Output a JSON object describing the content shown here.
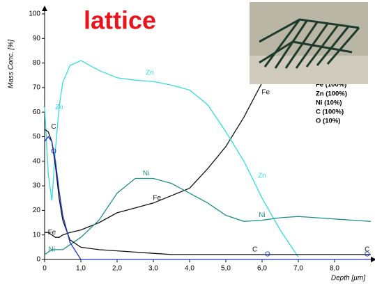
{
  "chart_data": {
    "type": "line",
    "title": "lattice",
    "y_label": "Mass Conc. [%]",
    "x_label": "Depth [µm]",
    "xlim": [
      0,
      9
    ],
    "ylim": [
      0,
      100
    ],
    "xticks": [
      0,
      {
        "value": 1,
        "label": "1,0"
      },
      {
        "value": 2,
        "label": "2,0"
      },
      {
        "value": 3,
        "label": "3,0"
      },
      {
        "value": 4,
        "label": "4,0"
      },
      {
        "value": 5,
        "label": "5,0"
      },
      {
        "value": 6,
        "label": "6,0"
      },
      {
        "value": 7,
        "label": "7,0"
      },
      {
        "value": 8,
        "label": "8,0"
      }
    ],
    "yticks": [
      0,
      10,
      20,
      30,
      40,
      50,
      60,
      70,
      80,
      90,
      100
    ],
    "x": [
      0,
      0.1,
      0.2,
      0.3,
      0.4,
      0.5,
      0.7,
      1.0,
      1.5,
      2.0,
      2.5,
      3.0,
      3.5,
      4.0,
      4.5,
      5.0,
      5.5,
      6.0,
      6.5,
      7.0,
      7.5,
      8.0,
      8.5,
      9.0
    ],
    "series": [
      {
        "name": "Fe (100%)",
        "color": "#111111",
        "values": [
          11,
          11,
          10,
          9,
          9,
          10,
          11,
          12,
          15,
          19,
          21,
          23,
          26,
          29,
          37,
          46,
          58,
          72,
          null,
          null,
          null,
          null,
          null,
          null
        ]
      },
      {
        "name": "Zn (100%)",
        "color": "#33dede",
        "values": [
          62,
          35,
          24,
          45,
          62,
          72,
          79,
          81,
          77,
          74,
          73,
          72.5,
          71,
          69,
          63,
          52,
          40,
          25,
          12,
          1,
          null,
          null,
          null,
          null
        ]
      },
      {
        "name": "Ni (10%)",
        "color": "#1f8f8c",
        "values": [
          2,
          3,
          4,
          4,
          4,
          4,
          6,
          9,
          16,
          27,
          33,
          33,
          31,
          27,
          23,
          18,
          15.5,
          16,
          17,
          17.5,
          17,
          16.5,
          16,
          15.5
        ]
      },
      {
        "name": "C (100%)",
        "color": "#111111",
        "values": [
          53,
          52,
          48,
          38,
          25,
          16,
          8,
          5,
          4,
          3.5,
          3,
          2.5,
          2,
          2,
          2,
          2,
          2,
          2,
          2,
          2,
          2,
          2,
          2,
          2
        ]
      },
      {
        "name": "O (10%)",
        "color": "#2233cc",
        "values": [
          48,
          50,
          48,
          40,
          28,
          18,
          7,
          0,
          0,
          0,
          0,
          0,
          0,
          0,
          0,
          0,
          0,
          0,
          0,
          0,
          0,
          0,
          0,
          0
        ]
      }
    ],
    "annotations": [
      {
        "text": "Zn",
        "x": 0.4,
        "y": 62,
        "color": "#33dede"
      },
      {
        "text": "Zn",
        "x": 2.9,
        "y": 76,
        "color": "#33dede"
      },
      {
        "text": "Zn",
        "x": 6.0,
        "y": 34,
        "color": "#33dede"
      },
      {
        "text": "Ni",
        "x": 0.2,
        "y": 4,
        "color": "#1f8f8c"
      },
      {
        "text": "Ni",
        "x": 2.8,
        "y": 35,
        "color": "#1f8f8c"
      },
      {
        "text": "Ni",
        "x": 6.0,
        "y": 18,
        "color": "#1f8f8c"
      },
      {
        "text": "Fe",
        "x": 0.2,
        "y": 11,
        "color": "#111111"
      },
      {
        "text": "Fe",
        "x": 3.1,
        "y": 25,
        "color": "#111111"
      },
      {
        "text": "Fe",
        "x": 6.1,
        "y": 68,
        "color": "#111111"
      },
      {
        "text": "C",
        "x": 0.25,
        "y": 54,
        "color": "#111111"
      },
      {
        "text": "C",
        "x": 5.8,
        "y": 4,
        "color": "#111111"
      },
      {
        "text": "C",
        "x": 8.9,
        "y": 4,
        "color": "#111111"
      },
      {
        "text": "O",
        "x": 0.25,
        "y": 44,
        "color": "#2233cc"
      },
      {
        "text": "O",
        "x": 6.15,
        "y": 2,
        "color": "#2233cc"
      },
      {
        "text": "O",
        "x": 8.9,
        "y": 2,
        "color": "#2233cc"
      }
    ]
  }
}
